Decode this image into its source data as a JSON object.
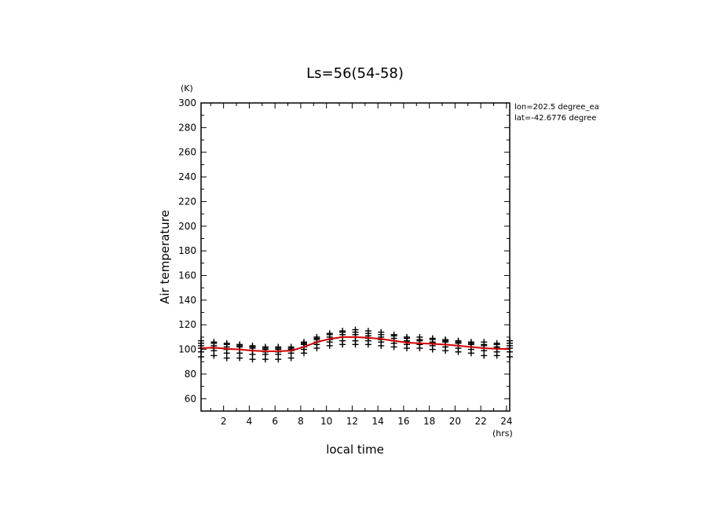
{
  "chart_data": {
    "type": "scatter",
    "title": "Ls=56(54-58)",
    "xlabel": "local time",
    "ylabel": "Air temperature",
    "x_unit": "(hrs)",
    "y_unit": "(K)",
    "xlim": [
      0.25,
      24.25
    ],
    "ylim": [
      50,
      300
    ],
    "x_ticks": [
      2,
      4,
      6,
      8,
      10,
      12,
      14,
      16,
      18,
      20,
      22,
      24
    ],
    "y_ticks": [
      60,
      80,
      100,
      120,
      140,
      160,
      180,
      200,
      220,
      240,
      260,
      280,
      300
    ],
    "annotations": [
      "lon=202.5 degree_ea",
      "lat=-42.6776 degree"
    ],
    "series": [
      {
        "marker": "plus",
        "color": "#000000",
        "x": [
          0.25,
          1.25,
          2.25,
          3.25,
          4.25,
          5.25,
          6.25,
          7.25,
          8.25,
          9.25,
          10.25,
          11.25,
          12.25,
          13.25,
          14.25,
          15.25,
          16.25,
          17.25,
          18.25,
          19.25,
          20.25,
          21.25,
          22.25,
          23.25,
          24.25
        ],
        "y_samples": [
          [
            94,
            98,
            101,
            103,
            105,
            107
          ],
          [
            95,
            99,
            101,
            103,
            105,
            106
          ],
          [
            93,
            97,
            100,
            102,
            104,
            105
          ],
          [
            93,
            97,
            100,
            102,
            103,
            104
          ],
          [
            92,
            96,
            99,
            101,
            102,
            103
          ],
          [
            92,
            96,
            98,
            100,
            101,
            102
          ],
          [
            92,
            96,
            98,
            100,
            101,
            102
          ],
          [
            93,
            97,
            99,
            100,
            101,
            102
          ],
          [
            97,
            100,
            102,
            104,
            105,
            106
          ],
          [
            101,
            104,
            106,
            108,
            109,
            110
          ],
          [
            103,
            106,
            108,
            110,
            112,
            113
          ],
          [
            104,
            107,
            110,
            112,
            114,
            115
          ],
          [
            104,
            107,
            110,
            112,
            114,
            116
          ],
          [
            104,
            107,
            109,
            111,
            113,
            115
          ],
          [
            103,
            106,
            108,
            110,
            112,
            114
          ],
          [
            102,
            105,
            107,
            109,
            111,
            112
          ],
          [
            101,
            104,
            106,
            107,
            109,
            110
          ],
          [
            101,
            104,
            105,
            107,
            108,
            110
          ],
          [
            100,
            103,
            105,
            106,
            108,
            109
          ],
          [
            99,
            102,
            104,
            106,
            107,
            108
          ],
          [
            98,
            101,
            103,
            105,
            106,
            107
          ],
          [
            97,
            100,
            102,
            104,
            105,
            106
          ],
          [
            95,
            99,
            101,
            103,
            104,
            106
          ],
          [
            95,
            98,
            101,
            102,
            104,
            105
          ],
          [
            94,
            98,
            101,
            103,
            105,
            107
          ]
        ]
      },
      {
        "marker": "line",
        "color": "#d40000",
        "x": [
          0.25,
          1.25,
          2.25,
          3.25,
          4.25,
          5.25,
          6.25,
          7.25,
          8.25,
          9.25,
          10.25,
          11.25,
          12.25,
          13.25,
          14.25,
          15.25,
          16.25,
          17.25,
          18.25,
          19.25,
          20.25,
          21.25,
          22.25,
          23.25,
          24.25
        ],
        "y": [
          101,
          101.5,
          100.5,
          100,
          99,
          98.5,
          98.5,
          99,
          102,
          106,
          108.5,
          110,
          110,
          109.5,
          108.5,
          107,
          105.5,
          105,
          104.5,
          104,
          103,
          102,
          101,
          100.5,
          100.5
        ]
      }
    ]
  }
}
